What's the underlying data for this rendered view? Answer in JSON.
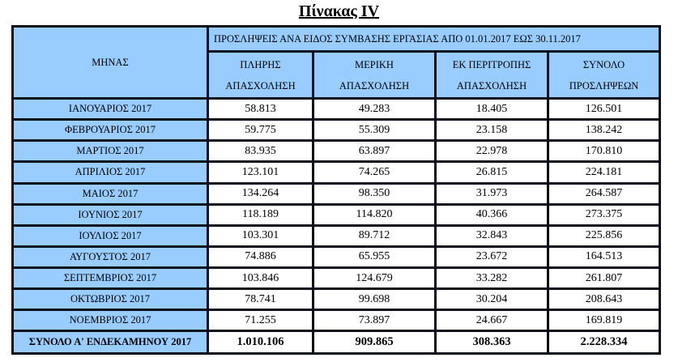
{
  "title": "Πίνακας IV",
  "header": {
    "month": "ΜΗΝΑΣ",
    "group": "ΠΡΟΣΛΗΨΕΙΣ ΑΝΑ ΕΙΔΟΣ  ΣΥΜΒΑΣΗΣ ΕΡΓΑΣΙΑΣ ΑΠΟ  01.01.2017  ΕΩΣ  30.11.2017",
    "columns": [
      {
        "l1": "ΠΛΗΡΗΣ",
        "l2": "ΑΠΑΣΧΟΛΗΣΗ"
      },
      {
        "l1": "ΜΕΡΙΚΗ",
        "l2": "ΑΠΑΣΧΟΛΗΣΗ"
      },
      {
        "l1": "ΕΚ ΠΕΡΙΤΡΟΠΗΣ",
        "l2": "ΑΠΑΣΧΟΛΗΣΗ"
      },
      {
        "l1": "ΣΥΝΟΛΟ",
        "l2": "ΠΡΟΣΛΗΨΕΩΝ"
      }
    ]
  },
  "rows": [
    [
      "ΙΑΝΟΥΑΡΙΟΣ 2017",
      "58.813",
      "49.283",
      "18.405",
      "126.501"
    ],
    [
      "ΦΕΒΡΟΥΑΡΙΟΣ 2017",
      "59.775",
      "55.309",
      "23.158",
      "138.242"
    ],
    [
      "ΜΑΡΤΙΟΣ 2017",
      "83.935",
      "63.897",
      "22.978",
      "170.810"
    ],
    [
      "ΑΠΡΙΛΙΟΣ 2017",
      "123.101",
      "74.265",
      "26.815",
      "224.181"
    ],
    [
      "ΜΑΙΟΣ 2017",
      "134.264",
      "98.350",
      "31.973",
      "264.587"
    ],
    [
      "ΙΟΥΝΙΟΣ 2017",
      "118.189",
      "114.820",
      "40.366",
      "273.375"
    ],
    [
      "ΙΟΥΛΙΟΣ 2017",
      "103.301",
      "89.712",
      "32.843",
      "225.856"
    ],
    [
      "ΑΥΓΟΥΣΤΟΣ 2017",
      "74.886",
      "65.955",
      "23.672",
      "164.513"
    ],
    [
      "ΣΕΠΤΕΜΒΡΙΟΣ 2017",
      "103.846",
      "124.679",
      "33.282",
      "261.807"
    ],
    [
      "ΟΚΤΩΒΡΙΟΣ 2017",
      "78.741",
      "99.698",
      "30.204",
      "208.643"
    ],
    [
      "ΝΟΕΜΒΡΙΟΣ 2017",
      "71.255",
      "73.897",
      "24.667",
      "169.819"
    ]
  ],
  "total": [
    "ΣΥΝΟΛΟ Α' ΕΝΔΕΚΑΜΗΝΟΥ 2017",
    "1.010.106",
    "909.865",
    "308.363",
    "2.228.334"
  ]
}
